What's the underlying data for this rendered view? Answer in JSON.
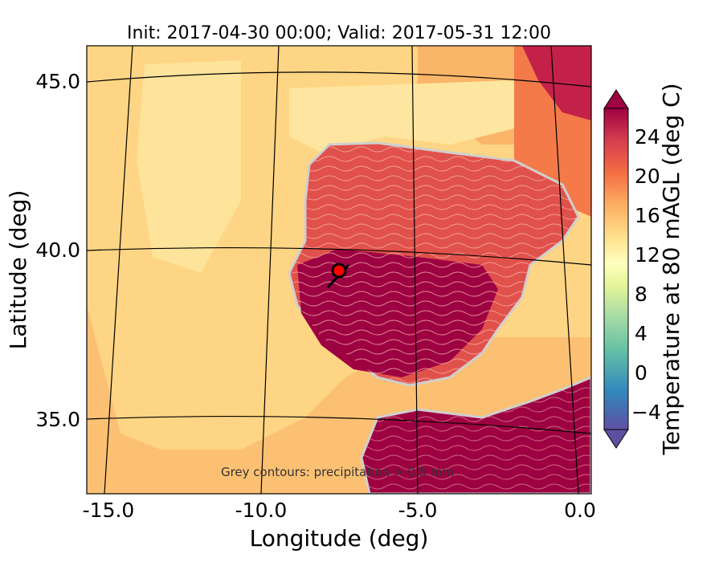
{
  "figure": {
    "title": "Init: 2017-04-30 00:00; Valid: 2017-05-31 12:00",
    "xlabel": "Longitude (deg)",
    "ylabel": "Latitude (deg)",
    "annotation": "Grey contours: precipitation > 0.5 mm",
    "x_ticks": [
      "-15.0",
      "-10.0",
      "-5.0",
      "0.0"
    ],
    "y_ticks": [
      "45.0",
      "40.0",
      "35.0"
    ],
    "colorbar": {
      "label": "Temperature at 80 mAGL (deg C)",
      "ticks": [
        "24",
        "20",
        "16",
        "12",
        "8",
        "4",
        "0",
        "−4"
      ],
      "range": [
        -6,
        28
      ],
      "extend": "both",
      "colormap": "Spectral_r",
      "colors": [
        "#5e4fa2",
        "#3f7fb8",
        "#3288bd",
        "#4fa3b0",
        "#66c2a5",
        "#8ed1a4",
        "#abdda4",
        "#cbe9a0",
        "#e6f598",
        "#f4faae",
        "#ffffbf",
        "#fff1a8",
        "#fee08b",
        "#fdcb75",
        "#fdae61",
        "#f99055",
        "#f46d43",
        "#e6563f",
        "#d53e4f",
        "#b9204a",
        "#9e0142"
      ]
    },
    "map": {
      "region": "Iberian Peninsula",
      "lon_range": [
        -16,
        0
      ],
      "lat_range": [
        32.8,
        46.3
      ],
      "marker": {
        "lon": -7.6,
        "lat": 39.3,
        "color": "#ff0000"
      }
    }
  }
}
